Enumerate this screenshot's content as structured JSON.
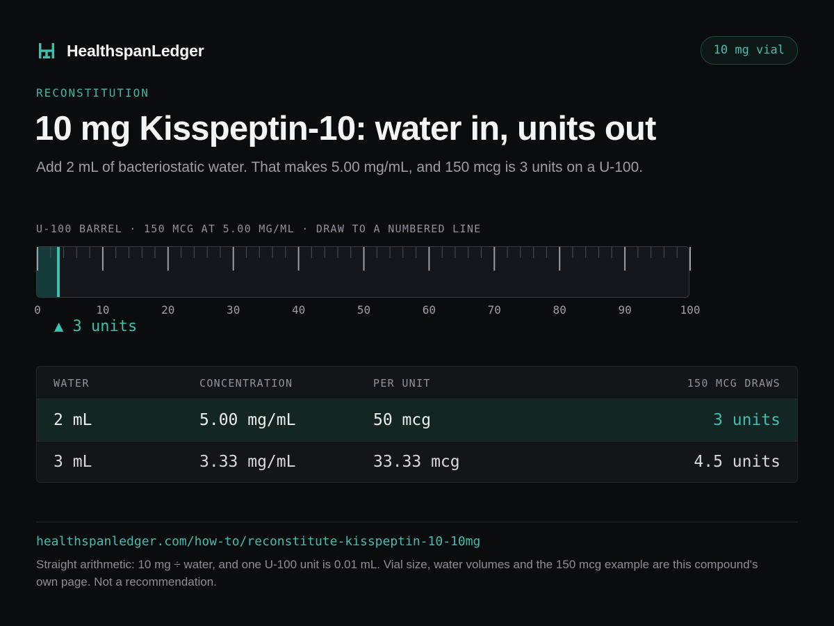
{
  "brand": {
    "name": "HealthspanLedger",
    "logo_icon": "ledger-logo-icon",
    "accent_color": "#3fbfae"
  },
  "badge": "10 mg vial",
  "eyebrow": "RECONSTITUTION",
  "title": "10 mg Kisspeptin-10: water in, units out",
  "subtitle": "Add 2 mL of bacteriostatic water. That makes 5.00 mg/mL, and 150 mcg is 3 units on a U-100.",
  "gauge": {
    "label": "U-100 BARREL · 150 MCG AT 5.00 MG/ML · DRAW TO A NUMBERED LINE",
    "min": 0,
    "max": 100,
    "value_units": 3,
    "tick_labels": [
      "0",
      "10",
      "20",
      "30",
      "40",
      "50",
      "60",
      "70",
      "80",
      "90",
      "100"
    ],
    "pointer_icon": "triangle-up-icon",
    "pointer_label": "▲ 3 units"
  },
  "table": {
    "headers": [
      "WATER",
      "CONCENTRATION",
      "PER UNIT",
      "150 MCG DRAWS"
    ],
    "rows": [
      [
        "2 mL",
        "5.00 mg/mL",
        "50 mcg",
        "3 units"
      ],
      [
        "3 mL",
        "3.33 mg/mL",
        "33.33 mcg",
        "4.5 units"
      ]
    ]
  },
  "footer": {
    "url": "healthspanledger.com/how-to/reconstitute-kisspeptin-10-10mg",
    "note": "Straight arithmetic: 10 mg ÷ water, and one U-100 unit is 0.01 mL. Vial size, water volumes and the 150 mcg example are this compound's own page. Not a recommendation."
  }
}
